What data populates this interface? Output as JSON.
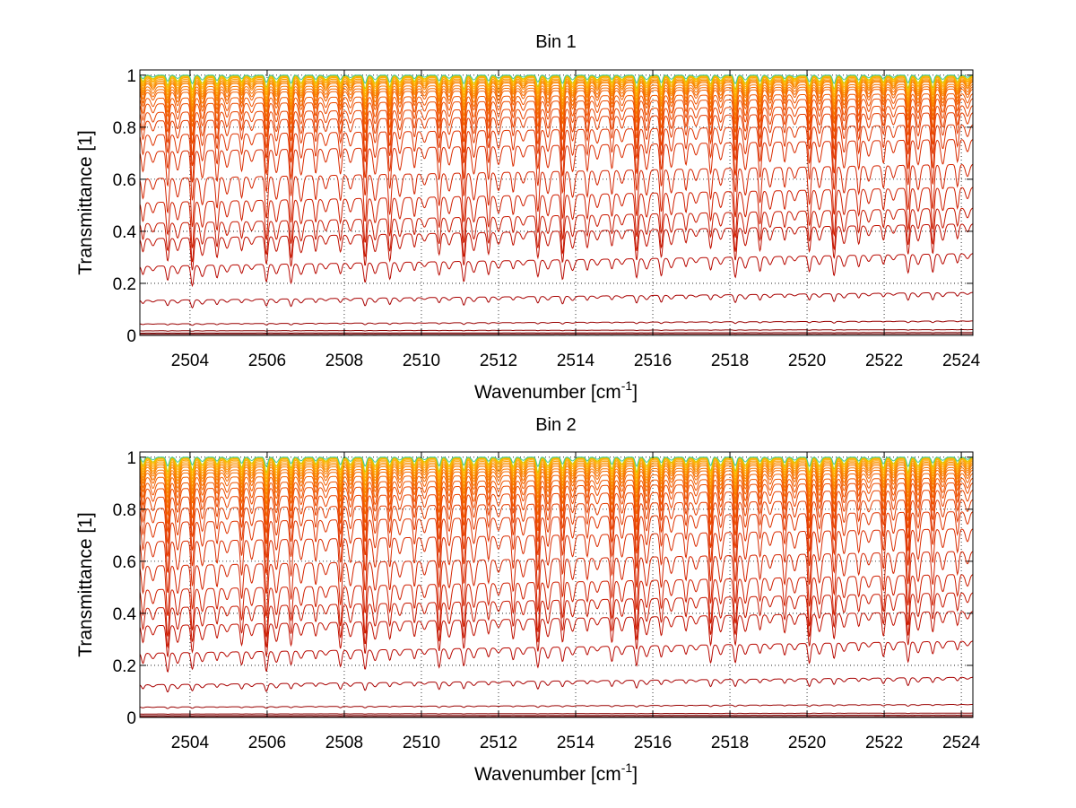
{
  "chart_data": [
    {
      "type": "line",
      "title": "Bin 1",
      "xlabel": "Wavenumber [cm",
      "xlabel_sup": "-1",
      "xlabel_end": "]",
      "ylabel": "Transmittance [1]",
      "xlim": [
        2502.7,
        2524.3
      ],
      "ylim": [
        0,
        1.02
      ],
      "xticks": [
        2504,
        2506,
        2508,
        2510,
        2512,
        2514,
        2516,
        2518,
        2520,
        2522,
        2524
      ],
      "yticks": [
        0,
        0.2,
        0.4,
        0.6,
        0.8,
        1
      ],
      "ytick_labels": [
        "0",
        "0.2",
        "0.4",
        "0.6",
        "0.8",
        "1"
      ],
      "grid": true,
      "series_baselines": [
        0.005,
        0.01,
        0.02,
        0.05,
        0.15,
        0.29,
        0.4,
        0.46,
        0.54,
        0.63,
        0.73,
        0.79,
        0.84,
        0.87,
        0.9,
        0.92,
        0.94,
        0.95,
        0.96,
        0.97,
        0.975,
        0.98,
        0.985,
        0.99,
        0.993,
        0.996,
        0.998,
        1.0
      ],
      "series_colors": [
        "#6b0000",
        "#7a0000",
        "#8a0000",
        "#990000",
        "#a80000",
        "#b80800",
        "#c01000",
        "#c81800",
        "#cf1e00",
        "#d42400",
        "#da2c00",
        "#df3400",
        "#e33c00",
        "#e84400",
        "#ec4c00",
        "#ef5600",
        "#f26000",
        "#f46a00",
        "#f67400",
        "#f87e00",
        "#f98800",
        "#fa9200",
        "#fb9c00",
        "#fca600",
        "#fdb000",
        "#fdb800",
        "#c8c800",
        "#40c8a0"
      ],
      "line_spacing_cm-1": 0.64,
      "line_depth_fraction": 0.22,
      "spectrum_tilt": 0.12
    },
    {
      "type": "line",
      "title": "Bin 2",
      "xlabel": "Wavenumber [cm",
      "xlabel_sup": "-1",
      "xlabel_end": "]",
      "ylabel": "Transmittance [1]",
      "xlim": [
        2502.7,
        2524.3
      ],
      "ylim": [
        0,
        1.02
      ],
      "xticks": [
        2504,
        2506,
        2508,
        2510,
        2512,
        2514,
        2516,
        2518,
        2520,
        2522,
        2524
      ],
      "yticks": [
        0,
        0.2,
        0.4,
        0.6,
        0.8,
        1
      ],
      "ytick_labels": [
        "0",
        "0.2",
        "0.4",
        "0.6",
        "0.8",
        "1"
      ],
      "grid": true,
      "series_baselines": [
        0.003,
        0.008,
        0.015,
        0.045,
        0.14,
        0.27,
        0.38,
        0.45,
        0.52,
        0.61,
        0.7,
        0.77,
        0.82,
        0.86,
        0.89,
        0.91,
        0.93,
        0.945,
        0.955,
        0.965,
        0.972,
        0.978,
        0.984,
        0.989,
        0.993,
        0.996,
        0.998,
        1.0
      ],
      "series_colors": [
        "#6b0000",
        "#7a0000",
        "#8a0000",
        "#990000",
        "#a80000",
        "#b80800",
        "#c01000",
        "#c81800",
        "#cf1e00",
        "#d42400",
        "#da2c00",
        "#df3400",
        "#e33c00",
        "#e84400",
        "#ec4c00",
        "#ef5600",
        "#f26000",
        "#f46a00",
        "#f67400",
        "#f87e00",
        "#f98800",
        "#fa9200",
        "#fb9c00",
        "#fca600",
        "#fdb000",
        "#fdb800",
        "#c8c800",
        "#40c8a0"
      ],
      "line_spacing_cm-1": 0.64,
      "line_depth_fraction": 0.24,
      "spectrum_tilt": 0.12
    }
  ]
}
